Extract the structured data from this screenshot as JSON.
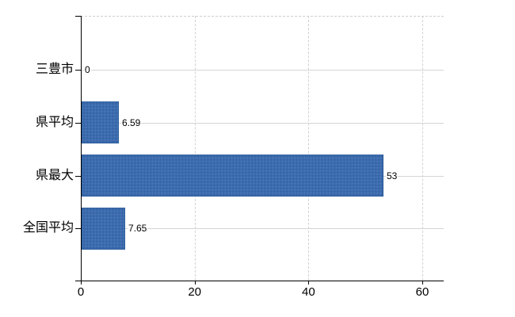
{
  "chart_data": {
    "type": "bar",
    "orientation": "horizontal",
    "title": "",
    "xlabel": "",
    "ylabel": "",
    "categories": [
      "三豊市",
      "県平均",
      "県最大",
      "全国平均"
    ],
    "values": [
      0,
      6.59,
      53,
      7.65
    ],
    "value_labels": [
      "0",
      "6.59",
      "53",
      "7.65"
    ],
    "xticks": [
      0,
      20,
      40,
      60
    ],
    "xtick_labels": [
      "0",
      "20",
      "40",
      "60"
    ],
    "xlim": [
      0,
      63.8
    ],
    "legend_position": "none",
    "grid": {
      "horizontal": "solid per category row",
      "vertical": "dashed at x ticks",
      "top_border": "dashed"
    },
    "colors": {
      "bar_fill": "#3a6bb0",
      "bar_border": "#2c5d9c",
      "gridline": "#d2d2d2",
      "axis": "#000000",
      "text": "#000000",
      "background": "#ffffff"
    }
  }
}
